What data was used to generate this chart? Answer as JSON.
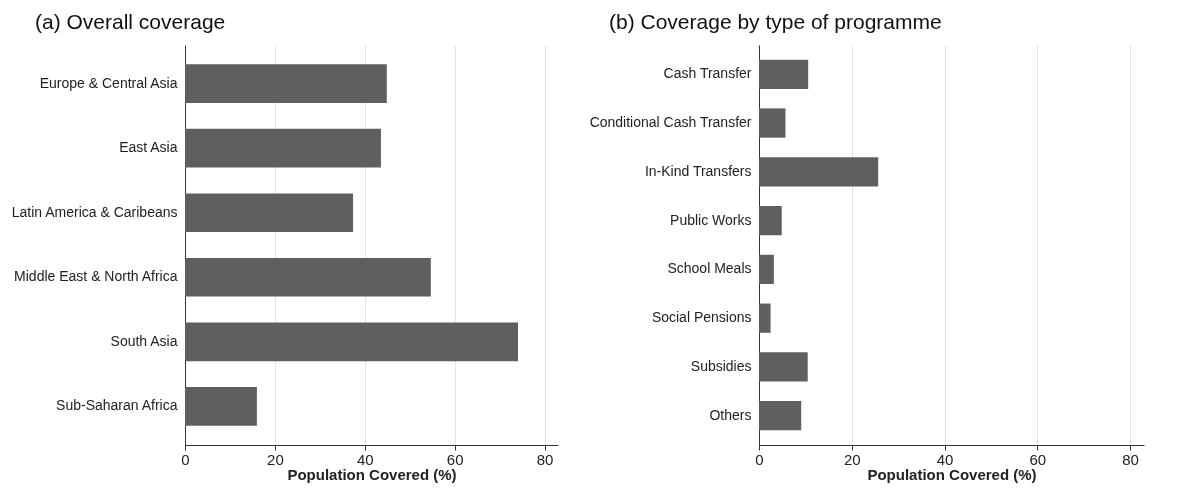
{
  "chart_data": [
    {
      "type": "bar",
      "title": "(a) Overall coverage",
      "orientation": "horizontal",
      "categories": [
        "Europe & Central Asia",
        "East Asia",
        "Latin America & Caribeans",
        "Middle East & North Africa",
        "South Asia",
        "Sub-Saharan Africa"
      ],
      "values": [
        44.9,
        43.6,
        37.4,
        54.7,
        74.1,
        16.0
      ],
      "color": "#5f5f5f",
      "xlim": [
        0,
        83
      ],
      "xticks": [
        0,
        20,
        40,
        60,
        80
      ],
      "xlabel": "Population Covered (%)",
      "grid": "x"
    },
    {
      "type": "bar",
      "title": "(b) Coverage by type of programme",
      "orientation": "horizontal",
      "categories": [
        "Cash Transfer",
        "Conditional Cash Transfer",
        "In-Kind Transfers",
        "Public Works",
        "School Meals",
        "Social Pensions",
        "Subsidies",
        "Others"
      ],
      "values": [
        10.6,
        5.7,
        25.7,
        4.9,
        3.2,
        2.5,
        10.5,
        9.1
      ],
      "color": "#5f5f5f",
      "xlim": [
        0,
        83
      ],
      "xticks": [
        0,
        20,
        40,
        60,
        80
      ],
      "xlabel": "Population Covered (%)",
      "grid": "x"
    }
  ]
}
